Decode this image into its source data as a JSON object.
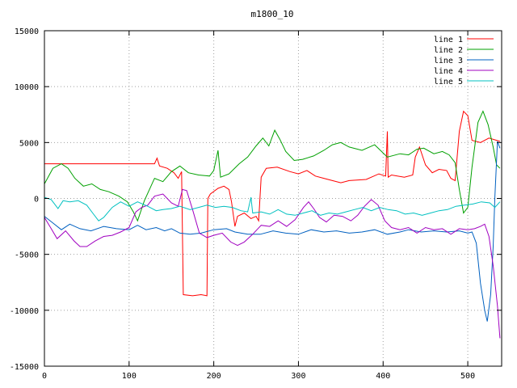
{
  "chart_data": {
    "type": "line",
    "title": "m1800_10",
    "xlabel": "",
    "ylabel": "",
    "xlim": [
      0,
      540
    ],
    "ylim": [
      -15000,
      15000
    ],
    "x_ticks": [
      0,
      100,
      200,
      300,
      400,
      500
    ],
    "y_ticks": [
      -15000,
      -10000,
      -5000,
      0,
      5000,
      10000,
      15000
    ],
    "grid": true,
    "legend_position": "top-right",
    "series": [
      {
        "name": "line 1",
        "color": "#ff0000",
        "points": [
          [
            0,
            3100
          ],
          [
            130,
            3100
          ],
          [
            133,
            3600
          ],
          [
            136,
            2900
          ],
          [
            145,
            2700
          ],
          [
            153,
            2300
          ],
          [
            158,
            1800
          ],
          [
            162,
            2400
          ],
          [
            164,
            -8600
          ],
          [
            175,
            -8700
          ],
          [
            185,
            -8600
          ],
          [
            192,
            -8700
          ],
          [
            193,
            0
          ],
          [
            196,
            400
          ],
          [
            205,
            900
          ],
          [
            212,
            1100
          ],
          [
            218,
            800
          ],
          [
            221,
            -300
          ],
          [
            225,
            -2500
          ],
          [
            228,
            -1600
          ],
          [
            236,
            -1300
          ],
          [
            244,
            -1800
          ],
          [
            250,
            -1600
          ],
          [
            253,
            -2000
          ],
          [
            256,
            1900
          ],
          [
            262,
            2700
          ],
          [
            275,
            2800
          ],
          [
            290,
            2400
          ],
          [
            300,
            2200
          ],
          [
            310,
            2500
          ],
          [
            320,
            2000
          ],
          [
            330,
            1800
          ],
          [
            340,
            1600
          ],
          [
            350,
            1400
          ],
          [
            360,
            1600
          ],
          [
            380,
            1700
          ],
          [
            395,
            2200
          ],
          [
            403,
            2000
          ],
          [
            405,
            6000
          ],
          [
            406,
            1900
          ],
          [
            410,
            2100
          ],
          [
            425,
            1900
          ],
          [
            435,
            2100
          ],
          [
            438,
            3700
          ],
          [
            443,
            4600
          ],
          [
            450,
            3000
          ],
          [
            458,
            2300
          ],
          [
            466,
            2600
          ],
          [
            475,
            2500
          ],
          [
            480,
            1800
          ],
          [
            485,
            1600
          ],
          [
            490,
            6000
          ],
          [
            495,
            7800
          ],
          [
            500,
            7400
          ],
          [
            505,
            5200
          ],
          [
            515,
            5000
          ],
          [
            525,
            5400
          ],
          [
            538,
            5100
          ]
        ]
      },
      {
        "name": "line 2",
        "color": "#00a000",
        "points": [
          [
            0,
            1300
          ],
          [
            10,
            2700
          ],
          [
            20,
            3100
          ],
          [
            28,
            2700
          ],
          [
            36,
            1800
          ],
          [
            46,
            1100
          ],
          [
            56,
            1300
          ],
          [
            66,
            800
          ],
          [
            76,
            600
          ],
          [
            88,
            200
          ],
          [
            98,
            -300
          ],
          [
            105,
            -1200
          ],
          [
            110,
            -2000
          ],
          [
            118,
            -200
          ],
          [
            130,
            1800
          ],
          [
            140,
            1500
          ],
          [
            150,
            2400
          ],
          [
            160,
            2900
          ],
          [
            170,
            2300
          ],
          [
            182,
            2100
          ],
          [
            195,
            2000
          ],
          [
            200,
            2500
          ],
          [
            205,
            4300
          ],
          [
            208,
            1900
          ],
          [
            218,
            2200
          ],
          [
            230,
            3100
          ],
          [
            240,
            3700
          ],
          [
            250,
            4700
          ],
          [
            258,
            5400
          ],
          [
            265,
            4700
          ],
          [
            272,
            6100
          ],
          [
            278,
            5300
          ],
          [
            285,
            4200
          ],
          [
            295,
            3400
          ],
          [
            305,
            3500
          ],
          [
            318,
            3800
          ],
          [
            330,
            4300
          ],
          [
            340,
            4800
          ],
          [
            350,
            5000
          ],
          [
            360,
            4600
          ],
          [
            375,
            4300
          ],
          [
            390,
            4800
          ],
          [
            405,
            3700
          ],
          [
            420,
            4000
          ],
          [
            430,
            3900
          ],
          [
            440,
            4400
          ],
          [
            448,
            4500
          ],
          [
            460,
            4000
          ],
          [
            470,
            4200
          ],
          [
            478,
            3900
          ],
          [
            485,
            3200
          ],
          [
            490,
            800
          ],
          [
            495,
            -1300
          ],
          [
            500,
            -800
          ],
          [
            505,
            2800
          ],
          [
            512,
            6800
          ],
          [
            518,
            7800
          ],
          [
            524,
            6600
          ],
          [
            530,
            4600
          ],
          [
            534,
            3000
          ],
          [
            538,
            2700
          ]
        ]
      },
      {
        "name": "line 3",
        "color": "#0060c0",
        "points": [
          [
            0,
            -1600
          ],
          [
            10,
            -2200
          ],
          [
            20,
            -2800
          ],
          [
            30,
            -2300
          ],
          [
            42,
            -2700
          ],
          [
            55,
            -2900
          ],
          [
            70,
            -2500
          ],
          [
            85,
            -2700
          ],
          [
            100,
            -2800
          ],
          [
            110,
            -2400
          ],
          [
            120,
            -2800
          ],
          [
            132,
            -2600
          ],
          [
            142,
            -2900
          ],
          [
            150,
            -2700
          ],
          [
            160,
            -3100
          ],
          [
            172,
            -3200
          ],
          [
            185,
            -3100
          ],
          [
            200,
            -2800
          ],
          [
            215,
            -2700
          ],
          [
            225,
            -3000
          ],
          [
            240,
            -3200
          ],
          [
            255,
            -3200
          ],
          [
            270,
            -2900
          ],
          [
            285,
            -3100
          ],
          [
            300,
            -3200
          ],
          [
            315,
            -2800
          ],
          [
            330,
            -3000
          ],
          [
            345,
            -2900
          ],
          [
            360,
            -3100
          ],
          [
            375,
            -3000
          ],
          [
            390,
            -2800
          ],
          [
            405,
            -3200
          ],
          [
            420,
            -3000
          ],
          [
            430,
            -2800
          ],
          [
            445,
            -3000
          ],
          [
            460,
            -2900
          ],
          [
            475,
            -3000
          ],
          [
            490,
            -2900
          ],
          [
            500,
            -3100
          ],
          [
            505,
            -3000
          ],
          [
            510,
            -4000
          ],
          [
            515,
            -7600
          ],
          [
            520,
            -10000
          ],
          [
            523,
            -11000
          ],
          [
            527,
            -8600
          ],
          [
            530,
            -4300
          ],
          [
            532,
            100
          ],
          [
            535,
            5100
          ],
          [
            538,
            4500
          ]
        ]
      },
      {
        "name": "line 4",
        "color": "#a000c0",
        "points": [
          [
            0,
            -1700
          ],
          [
            8,
            -2700
          ],
          [
            15,
            -3600
          ],
          [
            25,
            -2900
          ],
          [
            35,
            -3800
          ],
          [
            42,
            -4300
          ],
          [
            50,
            -4300
          ],
          [
            60,
            -3800
          ],
          [
            70,
            -3400
          ],
          [
            80,
            -3300
          ],
          [
            90,
            -3000
          ],
          [
            100,
            -2600
          ],
          [
            108,
            -1200
          ],
          [
            115,
            -800
          ],
          [
            122,
            -600
          ],
          [
            130,
            200
          ],
          [
            140,
            400
          ],
          [
            150,
            -400
          ],
          [
            158,
            -700
          ],
          [
            163,
            800
          ],
          [
            168,
            700
          ],
          [
            175,
            -1000
          ],
          [
            183,
            -3100
          ],
          [
            192,
            -3500
          ],
          [
            200,
            -3300
          ],
          [
            210,
            -3100
          ],
          [
            220,
            -3900
          ],
          [
            228,
            -4200
          ],
          [
            236,
            -3900
          ],
          [
            246,
            -3200
          ],
          [
            256,
            -2400
          ],
          [
            266,
            -2500
          ],
          [
            276,
            -2000
          ],
          [
            286,
            -2500
          ],
          [
            296,
            -1900
          ],
          [
            306,
            -800
          ],
          [
            312,
            -300
          ],
          [
            318,
            -900
          ],
          [
            325,
            -1700
          ],
          [
            333,
            -2100
          ],
          [
            342,
            -1500
          ],
          [
            352,
            -1600
          ],
          [
            362,
            -2000
          ],
          [
            370,
            -1500
          ],
          [
            378,
            -700
          ],
          [
            386,
            -100
          ],
          [
            394,
            -600
          ],
          [
            402,
            -2000
          ],
          [
            410,
            -2600
          ],
          [
            420,
            -2800
          ],
          [
            430,
            -2600
          ],
          [
            440,
            -3100
          ],
          [
            450,
            -2600
          ],
          [
            460,
            -2800
          ],
          [
            470,
            -2700
          ],
          [
            480,
            -3200
          ],
          [
            490,
            -2700
          ],
          [
            500,
            -2800
          ],
          [
            508,
            -2700
          ],
          [
            515,
            -2500
          ],
          [
            520,
            -2300
          ],
          [
            525,
            -3400
          ],
          [
            530,
            -6000
          ],
          [
            535,
            -9600
          ],
          [
            538,
            -12500
          ]
        ]
      },
      {
        "name": "line 5",
        "color": "#00c0c0",
        "points": [
          [
            0,
            100
          ],
          [
            8,
            -100
          ],
          [
            16,
            -900
          ],
          [
            22,
            -200
          ],
          [
            30,
            -300
          ],
          [
            40,
            -200
          ],
          [
            50,
            -600
          ],
          [
            57,
            -1300
          ],
          [
            64,
            -2000
          ],
          [
            70,
            -1700
          ],
          [
            80,
            -800
          ],
          [
            90,
            -300
          ],
          [
            100,
            -700
          ],
          [
            110,
            -300
          ],
          [
            122,
            -700
          ],
          [
            132,
            -1100
          ],
          [
            140,
            -1000
          ],
          [
            150,
            -900
          ],
          [
            160,
            -700
          ],
          [
            172,
            -1000
          ],
          [
            182,
            -800
          ],
          [
            192,
            -600
          ],
          [
            202,
            -800
          ],
          [
            212,
            -700
          ],
          [
            222,
            -800
          ],
          [
            232,
            -1100
          ],
          [
            240,
            -1200
          ],
          [
            244,
            100
          ],
          [
            246,
            -1300
          ],
          [
            256,
            -1200
          ],
          [
            266,
            -1400
          ],
          [
            276,
            -1000
          ],
          [
            286,
            -1400
          ],
          [
            296,
            -1500
          ],
          [
            306,
            -1300
          ],
          [
            316,
            -1100
          ],
          [
            326,
            -1500
          ],
          [
            336,
            -1300
          ],
          [
            346,
            -1400
          ],
          [
            356,
            -1200
          ],
          [
            366,
            -1000
          ],
          [
            376,
            -800
          ],
          [
            386,
            -1100
          ],
          [
            396,
            -800
          ],
          [
            406,
            -1000
          ],
          [
            416,
            -1100
          ],
          [
            426,
            -1400
          ],
          [
            436,
            -1300
          ],
          [
            446,
            -1500
          ],
          [
            456,
            -1300
          ],
          [
            466,
            -1100
          ],
          [
            476,
            -1000
          ],
          [
            486,
            -700
          ],
          [
            496,
            -600
          ],
          [
            506,
            -500
          ],
          [
            516,
            -300
          ],
          [
            526,
            -400
          ],
          [
            532,
            -800
          ],
          [
            538,
            -300
          ]
        ]
      }
    ]
  }
}
